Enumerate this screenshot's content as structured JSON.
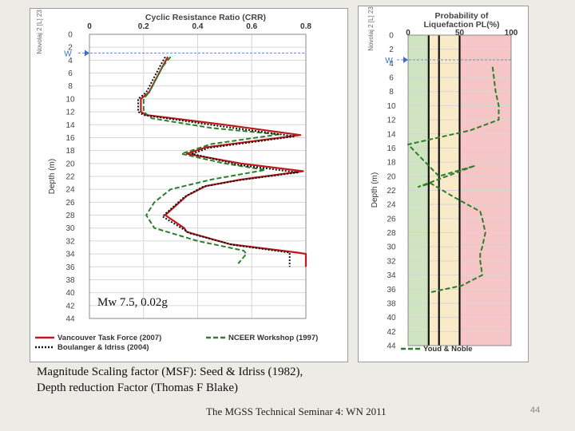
{
  "chart_data": [
    {
      "type": "line",
      "title": "Cyclic Resistance Ratio (CRR)",
      "ylabel": "Depth (m)",
      "side_label": "Novolaj 2 [L] 23",
      "water_table_label": "W",
      "xlim": [
        0,
        0.8
      ],
      "ylim": [
        0,
        44
      ],
      "x_ticks": [
        "0",
        "0.2",
        "0.4",
        "0.6",
        "0.8"
      ],
      "y_ticks": [
        "0",
        "2",
        "4",
        "6",
        "8",
        "10",
        "12",
        "14",
        "16",
        "18",
        "20",
        "22",
        "24",
        "26",
        "28",
        "30",
        "32",
        "34",
        "36",
        "38",
        "40",
        "42",
        "44"
      ],
      "water_table_depth": 2.9,
      "annotation": "Mw 7.5, 0.02g",
      "series": [
        {
          "name": "Vancouver Task Force (2007)",
          "color": "#c0181b",
          "style": "solid",
          "points": [
            [
              0.29,
              3.5
            ],
            [
              0.27,
              5
            ],
            [
              0.22,
              9
            ],
            [
              0.19,
              10
            ],
            [
              0.19,
              12
            ],
            [
              0.21,
              12.5
            ],
            [
              0.5,
              14
            ],
            [
              0.78,
              15.6
            ],
            [
              0.43,
              17.5
            ],
            [
              0.36,
              18.5
            ],
            [
              0.56,
              20
            ],
            [
              0.79,
              21.2
            ],
            [
              0.56,
              22.5
            ],
            [
              0.43,
              23.5
            ],
            [
              0.36,
              25
            ],
            [
              0.28,
              28
            ],
            [
              0.35,
              30
            ],
            [
              0.36,
              30.6
            ],
            [
              0.52,
              32.5
            ],
            [
              0.77,
              33.8
            ],
            [
              0.8,
              34
            ],
            [
              0.8,
              36
            ]
          ]
        },
        {
          "name": "NCEER Workshop (1997)",
          "color": "#2e7d2c",
          "style": "dashed",
          "points": [
            [
              0.3,
              3.5
            ],
            [
              0.27,
              5
            ],
            [
              0.22,
              9
            ],
            [
              0.2,
              10
            ],
            [
              0.2,
              12
            ],
            [
              0.23,
              13
            ],
            [
              0.45,
              14.5
            ],
            [
              0.7,
              15.5
            ],
            [
              0.45,
              17
            ],
            [
              0.34,
              18.5
            ],
            [
              0.5,
              20
            ],
            [
              0.65,
              21
            ],
            [
              0.45,
              22.5
            ],
            [
              0.3,
              24
            ],
            [
              0.24,
              26
            ],
            [
              0.21,
              28
            ],
            [
              0.24,
              30
            ],
            [
              0.4,
              32
            ],
            [
              0.57,
              33.5
            ],
            [
              0.58,
              34
            ],
            [
              0.55,
              35.5
            ]
          ]
        },
        {
          "name": "Boulanger & Idriss (2004)",
          "color": "#111111",
          "style": "dotted",
          "points": [
            [
              0.28,
              3.5
            ],
            [
              0.26,
              5
            ],
            [
              0.21,
              9
            ],
            [
              0.18,
              10
            ],
            [
              0.18,
              12
            ],
            [
              0.2,
              12.5
            ],
            [
              0.48,
              14.2
            ],
            [
              0.76,
              15.8
            ],
            [
              0.44,
              17.6
            ],
            [
              0.38,
              18.5
            ],
            [
              0.55,
              20.2
            ],
            [
              0.77,
              21.4
            ],
            [
              0.55,
              22.6
            ],
            [
              0.42,
              23.6
            ],
            [
              0.35,
              25.2
            ],
            [
              0.27,
              28.2
            ],
            [
              0.34,
              30
            ],
            [
              0.37,
              30.8
            ],
            [
              0.53,
              32.6
            ],
            [
              0.74,
              33.8
            ],
            [
              0.74,
              34.4
            ],
            [
              0.74,
              36
            ]
          ]
        }
      ],
      "legend": "bottom"
    },
    {
      "type": "line",
      "title": "Probability of Liquefaction PL(%)",
      "ylabel": "Depth (m)",
      "side_label": "Novolaj 2 [L] 23",
      "water_table_label": "W",
      "xlim": [
        0,
        100
      ],
      "ylim": [
        0,
        44
      ],
      "x_ticks": [
        "0",
        "50",
        "100"
      ],
      "y_ticks": [
        "0",
        "2",
        "4",
        "6",
        "8",
        "10",
        "12",
        "14",
        "16",
        "18",
        "20",
        "22",
        "24",
        "26",
        "28",
        "30",
        "32",
        "34",
        "36",
        "38",
        "40",
        "42",
        "44"
      ],
      "water_table_depth": 3.5,
      "zones": [
        {
          "from": 0,
          "to": 20,
          "color": "#cfe5c2"
        },
        {
          "from": 20,
          "to": 50,
          "color": "#faebc8"
        },
        {
          "from": 50,
          "to": 100,
          "color": "#f6c6c6"
        }
      ],
      "thresholds": [
        20,
        30,
        50
      ],
      "series": [
        {
          "name": "Youd & Noble",
          "color": "#2e7d2c",
          "style": "dashed",
          "points": [
            [
              82,
              4.5
            ],
            [
              85,
              8
            ],
            [
              88,
              10
            ],
            [
              88,
              12
            ],
            [
              60,
              13.5
            ],
            [
              0,
              15.5
            ],
            [
              30,
              20
            ],
            [
              65,
              18.5
            ],
            [
              10,
              21.5
            ],
            [
              22,
              21
            ],
            [
              45,
              23
            ],
            [
              70,
              25
            ],
            [
              72,
              26
            ],
            [
              75,
              28
            ],
            [
              72,
              30
            ],
            [
              70,
              31
            ],
            [
              70,
              32
            ],
            [
              72,
              34
            ],
            [
              52,
              35.5
            ],
            [
              20,
              36.5
            ]
          ]
        }
      ],
      "legend": "bottom"
    }
  ],
  "captions": {
    "line1": "Magnitude Scaling factor (MSF): Seed & Idriss (1982),",
    "line2": "Depth reduction Factor (Thomas F Blake)"
  },
  "footer": {
    "text": "The MGSS Technical Seminar 4: WN 2011",
    "page_number": "44"
  }
}
